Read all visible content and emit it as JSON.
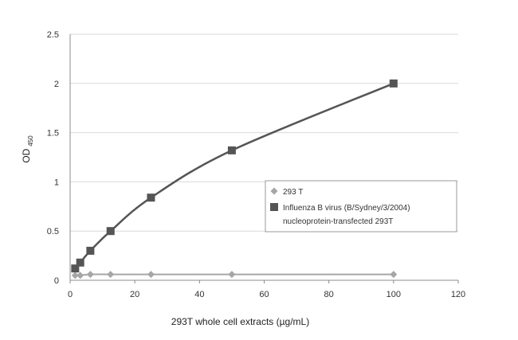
{
  "chart_data": {
    "type": "line",
    "xlabel": "293T whole cell extracts (µg/mL)",
    "ylabel": "OD",
    "ylabel_subscript": "450",
    "xlim": [
      0,
      120
    ],
    "ylim": [
      0,
      2.5
    ],
    "x_ticks": [
      "0",
      "20",
      "40",
      "60",
      "80",
      "100",
      "120"
    ],
    "y_ticks": [
      "0",
      "0.5",
      "1",
      "1.5",
      "2",
      "2.5"
    ],
    "grid": "horizontal",
    "legend_position": "center-right",
    "series": [
      {
        "name": "293 T",
        "marker": "diamond",
        "color": "#a6a6a6",
        "x": [
          1.5625,
          3.125,
          6.25,
          12.5,
          25,
          50,
          100
        ],
        "y": [
          0.05,
          0.05,
          0.06,
          0.06,
          0.06,
          0.06,
          0.06
        ]
      },
      {
        "name": "Influenza B virus (B/Sydney/3/2004) nucleoprotein-transfected 293T",
        "legend_lines": [
          "Influenza B virus (B/Sydney/3/2004)",
          "nucleoprotein-transfected 293T"
        ],
        "marker": "square",
        "color": "#555555",
        "x": [
          1.5625,
          3.125,
          6.25,
          12.5,
          25,
          50,
          100
        ],
        "y": [
          0.12,
          0.18,
          0.3,
          0.5,
          0.84,
          1.32,
          2.0
        ]
      }
    ]
  }
}
